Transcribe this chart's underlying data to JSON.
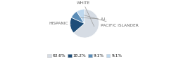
{
  "labels": [
    "WHITE",
    "HISPANIC",
    "A.I.",
    "PACIFIC ISLANDER"
  ],
  "values": [
    63.6,
    18.2,
    9.1,
    9.1
  ],
  "colors": [
    "#d6dce4",
    "#1f4e79",
    "#5b8db8",
    "#bdd7ee"
  ],
  "legend_labels": [
    "63.6%",
    "18.2%",
    "9.1%",
    "9.1%"
  ],
  "startangle": 90,
  "label_fontsize": 4.2,
  "legend_fontsize": 4.2,
  "label_params": [
    {
      "label": "WHITE",
      "idx": 0,
      "txy": [
        -0.08,
        1.3
      ],
      "ha": "center",
      "va": "bottom",
      "r": 0.8
    },
    {
      "label": "HISPANIC",
      "idx": 1,
      "txy": [
        -1.12,
        0.02
      ],
      "ha": "right",
      "va": "center",
      "r": 0.8
    },
    {
      "label": "A.I.",
      "idx": 2,
      "txy": [
        1.1,
        0.3
      ],
      "ha": "left",
      "va": "center",
      "r": 0.65
    },
    {
      "label": "PACIFIC ISLANDER",
      "idx": 3,
      "txy": [
        1.1,
        -0.12
      ],
      "ha": "left",
      "va": "center",
      "r": 0.65
    }
  ]
}
